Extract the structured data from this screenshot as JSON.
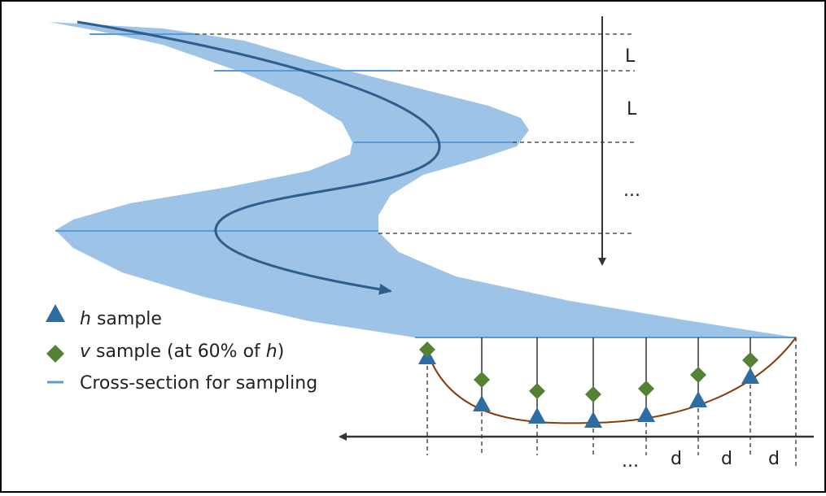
{
  "labels": {
    "segment_1": "L",
    "segment_2": "L",
    "vertical_ellipsis": "...",
    "bottom_ellipsis": "...",
    "spacing": [
      "d",
      "d",
      "d"
    ]
  },
  "legend": [
    {
      "parts": [
        "h",
        " sample"
      ]
    },
    {
      "parts": [
        "v",
        " sample (at 60% of ",
        "h",
        ")"
      ]
    },
    {
      "parts": [
        "Cross-section for sampling"
      ]
    }
  ]
}
